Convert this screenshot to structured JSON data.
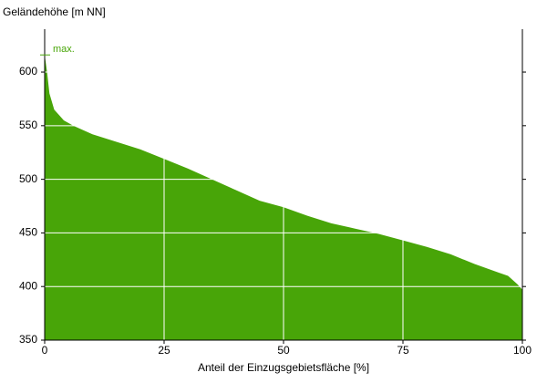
{
  "chart_data": {
    "type": "area",
    "y_label": "Geländehöhe [m NN]",
    "x_label": "Anteil der Einzugsgebietsfläche [%]",
    "x": [
      0,
      0.5,
      1,
      2,
      4,
      6,
      10,
      15,
      20,
      25,
      30,
      35,
      40,
      45,
      50,
      55,
      60,
      65,
      70,
      75,
      80,
      85,
      90,
      95,
      97,
      99,
      100
    ],
    "values": [
      616,
      600,
      580,
      565,
      555,
      550,
      542,
      535,
      528,
      519,
      510,
      500,
      490,
      480,
      474,
      466,
      459,
      454,
      449,
      443,
      437,
      430,
      421,
      413,
      410,
      402,
      397
    ],
    "color": "#48a508",
    "annotations": [
      {
        "text": "max.",
        "y": 616
      }
    ],
    "xlim": [
      0,
      100
    ],
    "xticks": [
      0,
      25,
      50,
      75,
      100
    ],
    "ylim": [
      350,
      640
    ],
    "yticks": [
      350,
      400,
      450,
      500,
      550,
      600
    ],
    "grid": true
  }
}
